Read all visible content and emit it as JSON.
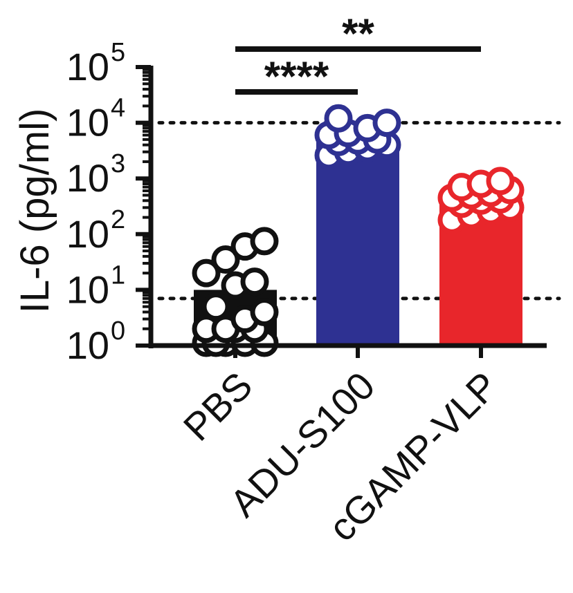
{
  "chart_data": {
    "type": "bar",
    "ylabel": "IL-6 (pg/ml)",
    "yscale": "log",
    "ylim": [
      1,
      100000
    ],
    "yticks": [
      {
        "value": 1,
        "base": "10",
        "exp": "0"
      },
      {
        "value": 10,
        "base": "10",
        "exp": "1"
      },
      {
        "value": 100,
        "base": "10",
        "exp": "2"
      },
      {
        "value": 1000,
        "base": "10",
        "exp": "3"
      },
      {
        "value": 10000,
        "base": "10",
        "exp": "4"
      },
      {
        "value": 100000,
        "base": "10",
        "exp": "5"
      }
    ],
    "categories": [
      "PBS",
      "ADU-S100",
      "cGAMP-VLP"
    ],
    "values": [
      10,
      4500,
      450
    ],
    "colors": [
      "#111111",
      "#2e3192",
      "#e8262b"
    ],
    "points": [
      [
        1,
        1,
        1,
        1,
        1,
        2,
        2,
        2,
        2,
        3,
        4,
        5,
        12,
        14,
        20,
        35,
        60,
        75
      ],
      [
        2600,
        3000,
        3500,
        4000,
        4500,
        4800,
        5000,
        6000,
        6500,
        8000,
        10000,
        12000
      ],
      [
        180,
        220,
        260,
        300,
        350,
        400,
        420,
        450,
        500,
        550,
        620,
        700,
        800,
        900
      ]
    ],
    "reference_lines": [
      10000,
      7
    ],
    "significance": [
      {
        "from": "PBS",
        "to": "cGAMP-VLP",
        "label": "**"
      },
      {
        "from": "PBS",
        "to": "ADU-S100",
        "label": "****"
      }
    ]
  }
}
